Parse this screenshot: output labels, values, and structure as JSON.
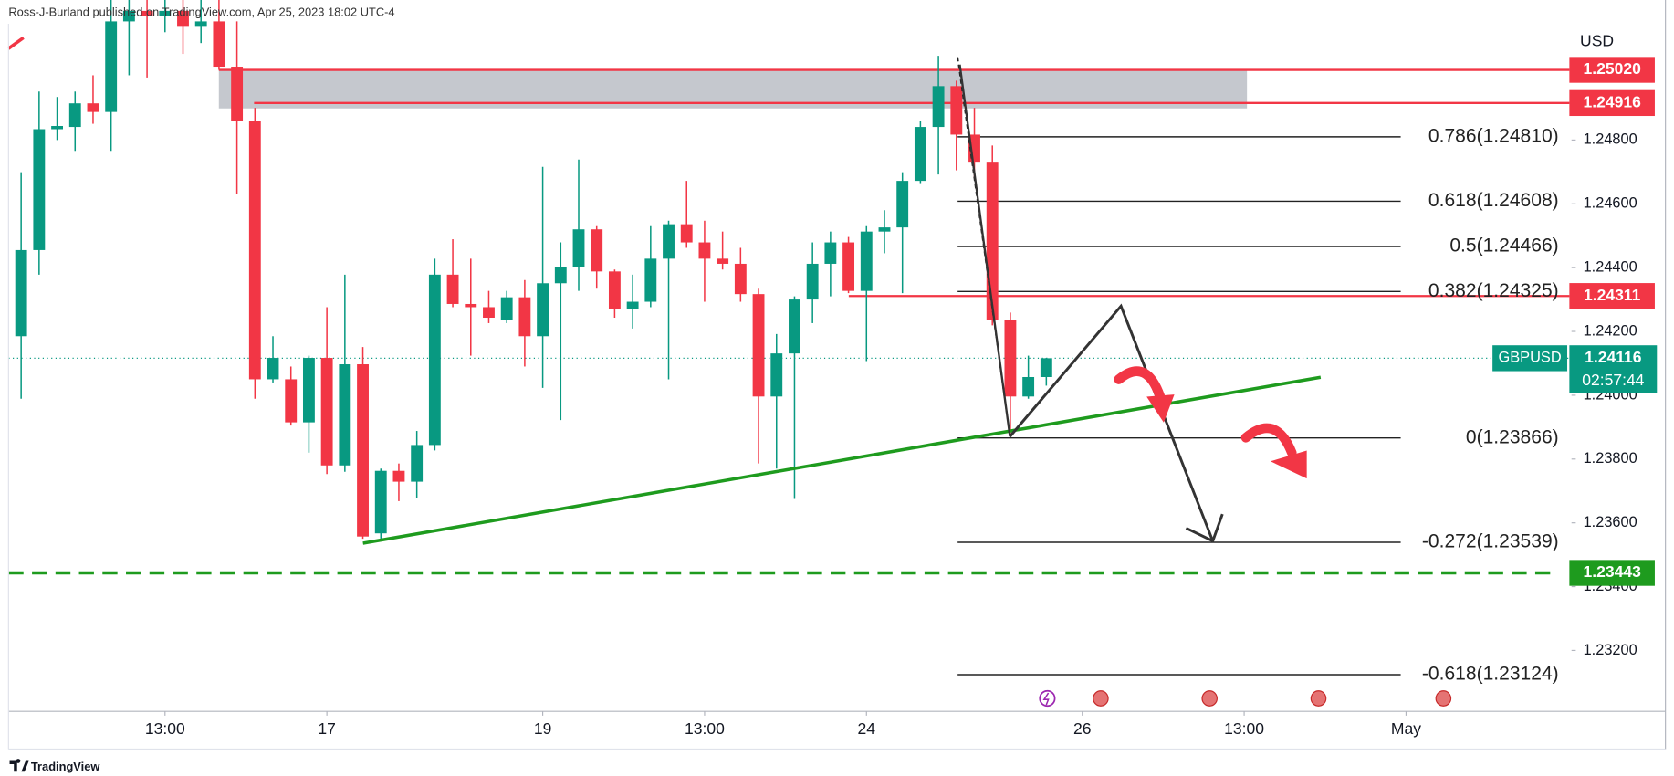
{
  "chart_data": {
    "type": "candlestick",
    "header": "Ross-J-Burland published on TradingView.com, Apr 25, 2023 18:02 UTC-4",
    "currency": "USD",
    "symbol": "GBPUSD",
    "countdown": "02:57:44",
    "brand": "TradingView",
    "up_color": "#089981",
    "down_color": "#f23645",
    "xlim": [
      -0.7,
      86.2
    ],
    "ylim": [
      1.23009,
      1.25239
    ],
    "xticks": [
      {
        "value": 8,
        "label": "13:00"
      },
      {
        "value": 17,
        "label": "17"
      },
      {
        "value": 29,
        "label": "19"
      },
      {
        "value": 38,
        "label": "13:00"
      },
      {
        "value": 47,
        "label": "24"
      },
      {
        "value": 59,
        "label": "26"
      },
      {
        "value": 68,
        "label": "13:00"
      },
      {
        "value": 77,
        "label": "May"
      }
    ],
    "yticks": [
      {
        "value": 1.248,
        "label": "1.24800"
      },
      {
        "value": 1.246,
        "label": "1.24600"
      },
      {
        "value": 1.244,
        "label": "1.24400"
      },
      {
        "value": 1.242,
        "label": "1.24200"
      },
      {
        "value": 1.24,
        "label": "1.24000"
      },
      {
        "value": 1.238,
        "label": "1.23800"
      },
      {
        "value": 1.236,
        "label": "1.23600"
      },
      {
        "value": 1.234,
        "label": "1.23400"
      },
      {
        "value": 1.232,
        "label": "1.23200"
      }
    ],
    "x": [
      0,
      1,
      2,
      3,
      4,
      5,
      6,
      7,
      8,
      9,
      10,
      11,
      12,
      13,
      14,
      15,
      16,
      17,
      18,
      19,
      20,
      21,
      22,
      23,
      24,
      25,
      26,
      27,
      28,
      29,
      30,
      31,
      32,
      33,
      34,
      35,
      36,
      37,
      38,
      39,
      40,
      41,
      42,
      43,
      44,
      45,
      46,
      47,
      48,
      49,
      50,
      51,
      52,
      53,
      54,
      55,
      56,
      57
    ],
    "open": [
      1.24185,
      1.24455,
      1.24834,
      1.24841,
      1.24915,
      1.24888,
      1.25172,
      1.25205,
      1.25188,
      1.25205,
      1.25155,
      1.25172,
      1.2503,
      1.24861,
      1.2405,
      1.2405,
      1.23915,
      1.24117,
      1.2378,
      1.24097,
      1.23567,
      1.23763,
      1.23729,
      1.23844,
      1.24378,
      1.24286,
      1.24276,
      1.24236,
      1.24307,
      1.24185,
      1.24351,
      1.24401,
      1.2452,
      1.24388,
      1.2427,
      1.24293,
      1.24428,
      1.24536,
      1.24479,
      1.24428,
      1.24412,
      1.24317,
      1.23996,
      1.24131,
      1.243,
      1.24412,
      1.24479,
      1.24327,
      1.24513,
      1.24526,
      1.24672,
      1.24841,
      1.24969,
      1.24817,
      1.24732,
      1.24236,
      1.23996,
      1.24057
    ],
    "high": [
      1.24699,
      1.24952,
      1.24935,
      1.24952,
      1.25003,
      1.25239,
      1.25239,
      1.25239,
      1.25239,
      1.25239,
      1.25239,
      1.25239,
      1.25172,
      1.24901,
      1.24185,
      1.2409,
      1.24124,
      1.24276,
      1.24378,
      1.24151,
      1.2377,
      1.23786,
      1.23888,
      1.24428,
      1.24489,
      1.24428,
      1.24327,
      1.24327,
      1.24361,
      1.24716,
      1.24479,
      1.24739,
      1.2453,
      1.24394,
      1.24378,
      1.2453,
      1.24547,
      1.24672,
      1.24547,
      1.24513,
      1.24462,
      1.24334,
      1.24192,
      1.2431,
      1.24479,
      1.24513,
      1.24496,
      1.2453,
      1.2458,
      1.24699,
      1.24861,
      1.25064,
      1.24986,
      1.24901,
      1.24783,
      1.24259,
      1.24124,
      1.24117
    ],
    "low": [
      1.23989,
      1.24378,
      1.248,
      1.24766,
      1.24851,
      1.24766,
      1.25003,
      1.24996,
      1.25138,
      1.2507,
      1.25104,
      1.2502,
      1.24631,
      1.23989,
      1.2404,
      1.23905,
      1.2382,
      1.23753,
      1.2376,
      1.2355,
      1.2355,
      1.23668,
      1.23678,
      1.23827,
      1.24276,
      1.24124,
      1.24226,
      1.24226,
      1.2409,
      1.24023,
      1.23922,
      1.24327,
      1.24334,
      1.24243,
      1.24209,
      1.24276,
      1.2405,
      1.24462,
      1.24293,
      1.24394,
      1.24293,
      1.23786,
      1.2377,
      1.23675,
      1.24226,
      1.2431,
      1.2432,
      1.24107,
      1.24445,
      1.2432,
      1.24665,
      1.24692,
      1.24705,
      1.24682,
      1.24219,
      1.23881,
      1.23989,
      1.2403
    ],
    "close": [
      1.24455,
      1.24834,
      1.24844,
      1.24915,
      1.24888,
      1.25172,
      1.25205,
      1.25188,
      1.25205,
      1.25155,
      1.25172,
      1.2503,
      1.24861,
      1.2405,
      1.24117,
      1.23915,
      1.24117,
      1.2378,
      1.24097,
      1.23557,
      1.23763,
      1.23729,
      1.23844,
      1.24378,
      1.24286,
      1.24276,
      1.24243,
      1.24307,
      1.24185,
      1.24351,
      1.24401,
      1.2452,
      1.24388,
      1.2427,
      1.24293,
      1.24428,
      1.24536,
      1.24479,
      1.24428,
      1.24412,
      1.24317,
      1.23996,
      1.24131,
      1.243,
      1.24412,
      1.24479,
      1.24327,
      1.24513,
      1.24526,
      1.24672,
      1.24841,
      1.24969,
      1.24817,
      1.24732,
      1.24236,
      1.23996,
      1.24057,
      1.24116
    ],
    "levels": [
      {
        "value": 1.2502,
        "label": "1.25020",
        "color": "#f23645"
      },
      {
        "value": 1.24916,
        "label": "1.24916",
        "color": "#f23645"
      },
      {
        "value": 1.24311,
        "label": "1.24311",
        "color": "#f23645"
      },
      {
        "value": 1.23443,
        "label": "1.23443",
        "color": "#1e9b1e"
      }
    ],
    "fib": [
      {
        "value": 1.2481,
        "label": "0.786(1.24810)"
      },
      {
        "value": 1.24608,
        "label": "0.618(1.24608)"
      },
      {
        "value": 1.24466,
        "label": "0.5(1.24466)"
      },
      {
        "value": 1.24325,
        "label": "0.382(1.24325)"
      },
      {
        "value": 1.23866,
        "label": "0(1.23866)"
      },
      {
        "value": 1.23539,
        "label": "-0.272(1.23539)"
      },
      {
        "value": 1.23124,
        "label": "-0.618(1.23124)"
      }
    ]
  }
}
